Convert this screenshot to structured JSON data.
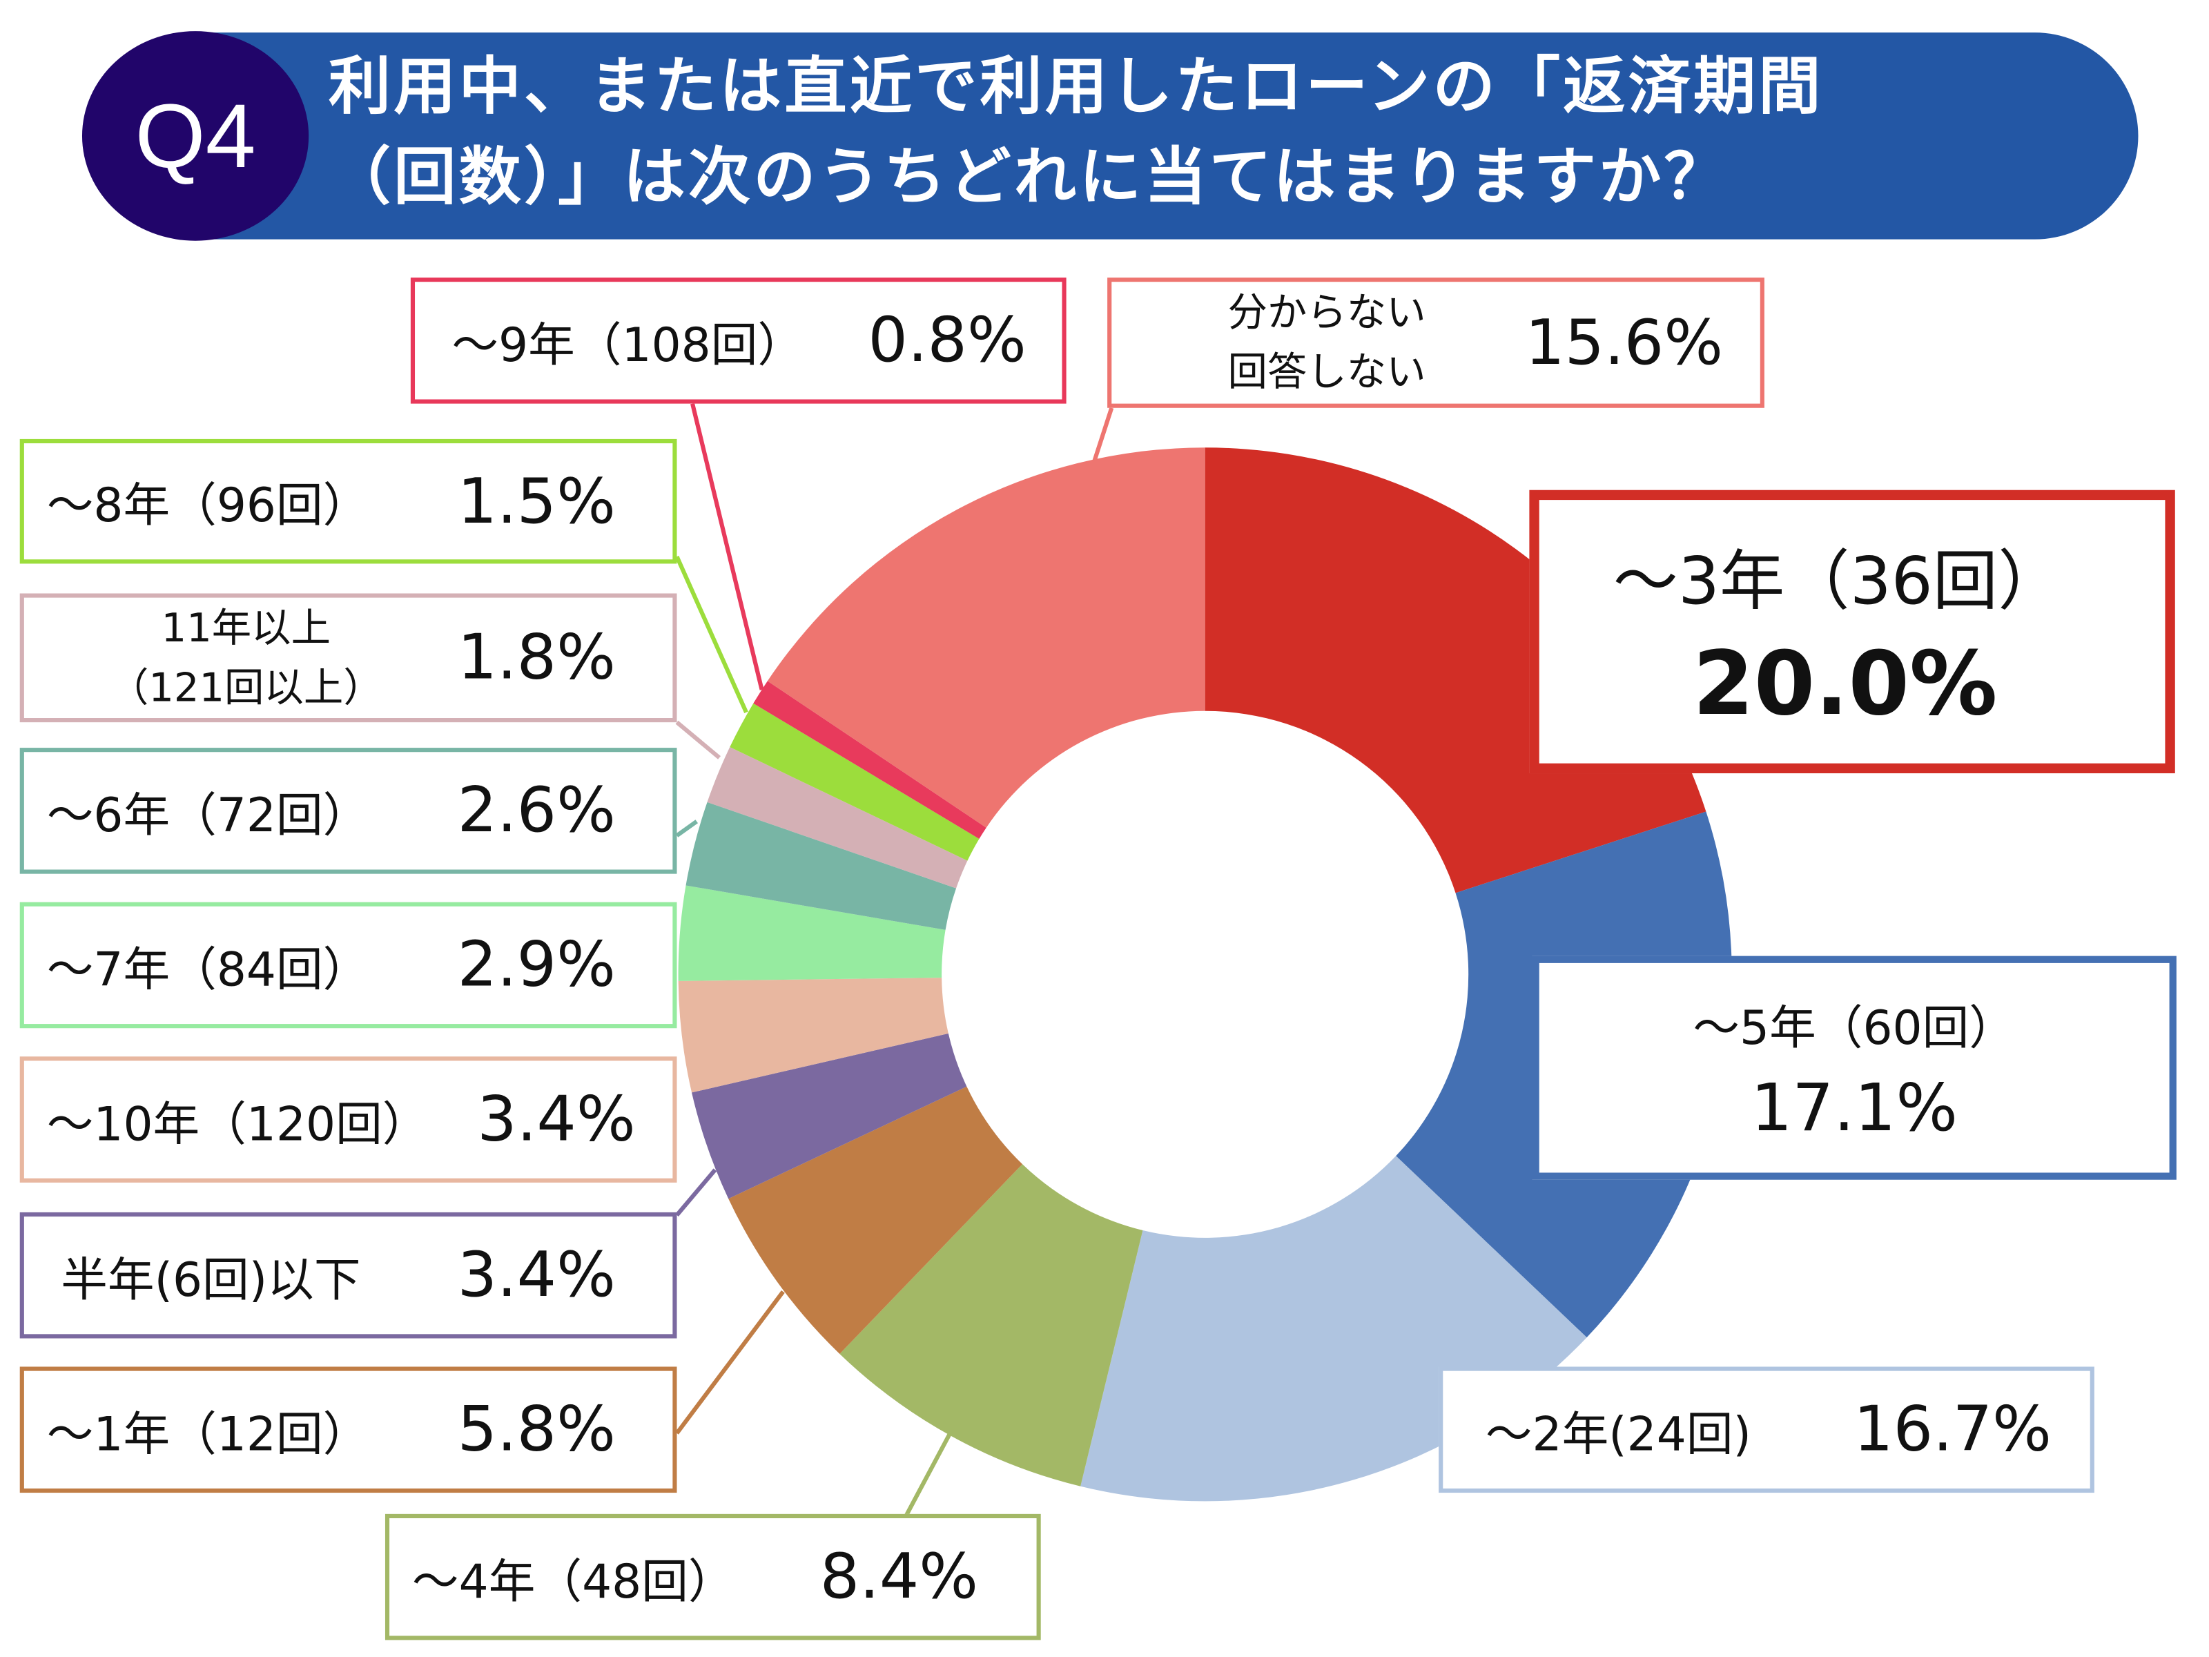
{
  "header": {
    "badge": "Q4",
    "title_line1": "利用中、または直近で利用したローンの「返済期間",
    "title_line2": "（回数）」は次のうちどれに当てはまりますか？"
  },
  "chart_data": {
    "type": "pie",
    "style": "donut",
    "start": "top, clockwise",
    "slices": [
      {
        "label": "〜3年（36回）",
        "value": 20.0,
        "pct": "20.0%",
        "color": "#D22E26"
      },
      {
        "label": "〜5年（60回）",
        "value": 17.1,
        "pct": "17.1%",
        "color": "#4470B3"
      },
      {
        "label": "〜2年(24回)",
        "value": 16.7,
        "pct": "16.7%",
        "color": "#AFC4E0"
      },
      {
        "label": "〜4年（48回）",
        "value": 8.4,
        "pct": "8.4%",
        "color": "#A3B866"
      },
      {
        "label": "〜1年（12回）",
        "value": 5.8,
        "pct": "5.8%",
        "color": "#C07D45"
      },
      {
        "label": "半年(6回)以下",
        "value": 3.4,
        "pct": "3.4%",
        "color": "#7B69A0"
      },
      {
        "label": "〜10年（120回）",
        "value": 3.4,
        "pct": "3.4%",
        "color": "#E8B7A0"
      },
      {
        "label": "〜7年（84回）",
        "value": 2.9,
        "pct": "2.9%",
        "color": "#96EBA0"
      },
      {
        "label": "〜6年（72回）",
        "value": 2.6,
        "pct": "2.6%",
        "color": "#78B5A5"
      },
      {
        "label": "11年以上（121回以上）",
        "label_line1": "11年以上",
        "label_line2": "（121回以上）",
        "value": 1.8,
        "pct": "1.8%",
        "color": "#D4B0B5"
      },
      {
        "label": "〜8年（96回）",
        "value": 1.5,
        "pct": "1.5%",
        "color": "#9CDD3C"
      },
      {
        "label": "〜9年（108回）",
        "value": 0.8,
        "pct": "0.8%",
        "color": "#E83A5C"
      },
      {
        "label": "分からない 回答しない",
        "label_line1": "分からない",
        "label_line2": "回答しない",
        "value": 15.6,
        "pct": "15.6%",
        "color": "#EE7570"
      }
    ]
  }
}
